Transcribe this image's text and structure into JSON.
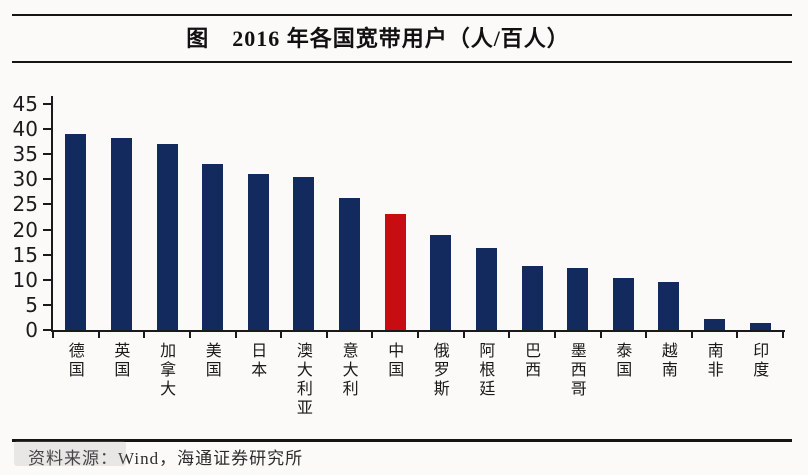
{
  "header": {
    "title": "图　2016 年各国宽带用户（人/百人）"
  },
  "footer": {
    "source": "资料来源：Wind，海通证券研究所"
  },
  "chart_data": {
    "type": "bar",
    "title": "2016 年各国宽带用户（人/百人）",
    "categories": [
      "德国",
      "英国",
      "加拿大",
      "美国",
      "日本",
      "澳大利亚",
      "意大利",
      "中国",
      "俄罗斯",
      "阿根廷",
      "巴西",
      "墨西哥",
      "泰国",
      "越南",
      "南非",
      "印度"
    ],
    "values": [
      39.0,
      38.3,
      37.0,
      33.0,
      31.0,
      30.4,
      26.2,
      23.2,
      19.0,
      16.3,
      12.8,
      12.4,
      10.3,
      9.5,
      2.2,
      1.4
    ],
    "highlight_category": "中国",
    "highlight_index": 7,
    "bar_color": "#132a5e",
    "highlight_color": "#c80d12",
    "axis_color": "#1a1a1a",
    "ylim": [
      0,
      45
    ],
    "ytick_step": 5,
    "yticks": [
      0,
      5,
      10,
      15,
      20,
      25,
      30,
      35,
      40,
      45
    ],
    "xlabel": "",
    "ylabel": "",
    "grid": false,
    "legend": false
  }
}
